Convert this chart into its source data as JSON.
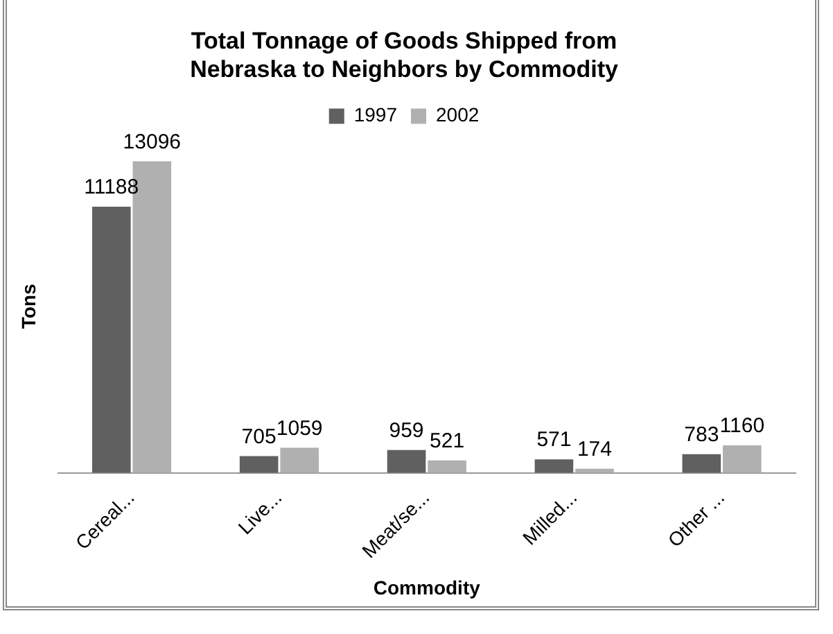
{
  "chart_data": {
    "type": "bar",
    "title": "Total Tonnage of Goods Shipped from Nebraska to Neighbors by Commodity",
    "xlabel": "Commodity",
    "ylabel": "Tons",
    "categories": [
      "Cereal...",
      "Live...",
      "Meat/se...",
      "Milled...",
      "Other ..."
    ],
    "series": [
      {
        "name": "1997",
        "color": "#606060",
        "values": [
          11188,
          705,
          959,
          571,
          783
        ]
      },
      {
        "name": "2002",
        "color": "#b0b0b0",
        "values": [
          13096,
          1059,
          521,
          174,
          1160
        ]
      }
    ],
    "data_labels": true,
    "legend": "top",
    "grid": false
  }
}
